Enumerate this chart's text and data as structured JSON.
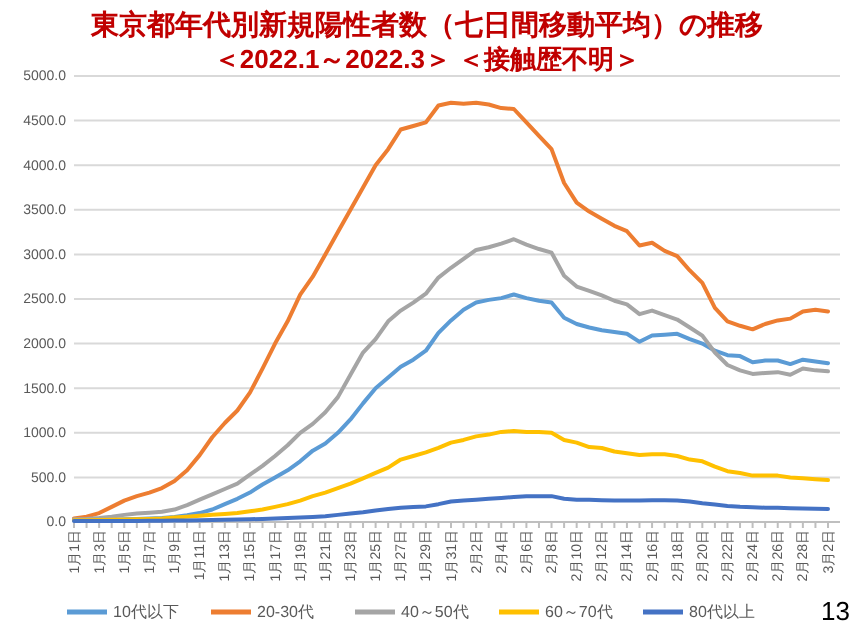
{
  "chart_data": {
    "type": "line",
    "title": "東京都年代別新規陽性者数（七日間移動平均）の推移",
    "subtitle": "＜2022.1～2022.3＞ ＜接触歴不明＞",
    "categories": [
      "1月1日",
      null,
      "1月3日",
      null,
      "1月5日",
      null,
      "1月7日",
      null,
      "1月9日",
      null,
      "1月11日",
      null,
      "1月13日",
      null,
      "1月15日",
      null,
      "1月17日",
      null,
      "1月19日",
      null,
      "1月21日",
      null,
      "1月23日",
      null,
      "1月25日",
      null,
      "1月27日",
      null,
      "1月29日",
      null,
      "1月31日",
      null,
      "2月2日",
      null,
      "2月4日",
      null,
      "2月6日",
      null,
      "2月8日",
      null,
      "2月10日",
      null,
      "2月12日",
      null,
      "2月14日",
      null,
      "2月16日",
      null,
      "2月18日",
      null,
      "2月20日",
      null,
      "2月22日",
      null,
      "2月24日",
      null,
      "2月26日",
      null,
      "2月28日",
      null,
      "3月2日"
    ],
    "series": [
      {
        "name": "10代以下",
        "color": "#5b9bd5",
        "values": [
          20,
          20,
          25,
          25,
          30,
          35,
          40,
          45,
          55,
          75,
          100,
          140,
          200,
          260,
          330,
          420,
          500,
          580,
          680,
          800,
          880,
          1000,
          1150,
          1330,
          1500,
          1620,
          1740,
          1820,
          1920,
          2120,
          2260,
          2380,
          2460,
          2490,
          2510,
          2550,
          2510,
          2480,
          2460,
          2290,
          2220,
          2180,
          2150,
          2130,
          2110,
          2020,
          2090,
          2100,
          2110,
          2050,
          2000,
          1920,
          1870,
          1860,
          1790,
          1810,
          1810,
          1770,
          1820,
          1800,
          1780
        ]
      },
      {
        "name": "20-30代",
        "color": "#ed7d31",
        "values": [
          40,
          60,
          100,
          170,
          240,
          290,
          330,
          380,
          460,
          580,
          750,
          950,
          1110,
          1250,
          1450,
          1720,
          2000,
          2250,
          2550,
          2750,
          3000,
          3250,
          3500,
          3750,
          4000,
          4180,
          4400,
          4440,
          4480,
          4670,
          4700,
          4690,
          4700,
          4680,
          4640,
          4630,
          4480,
          4330,
          4180,
          3800,
          3580,
          3480,
          3400,
          3320,
          3260,
          3100,
          3130,
          3040,
          2980,
          2820,
          2680,
          2400,
          2250,
          2200,
          2160,
          2220,
          2260,
          2280,
          2360,
          2380,
          2360
        ]
      },
      {
        "name": "40～50代",
        "color": "#a5a5a5",
        "values": [
          30,
          35,
          45,
          60,
          80,
          95,
          105,
          115,
          140,
          190,
          250,
          310,
          370,
          430,
          530,
          630,
          740,
          860,
          1000,
          1100,
          1230,
          1400,
          1650,
          1900,
          2050,
          2250,
          2370,
          2460,
          2560,
          2740,
          2850,
          2950,
          3050,
          3080,
          3120,
          3170,
          3110,
          3060,
          3020,
          2760,
          2640,
          2590,
          2540,
          2480,
          2440,
          2330,
          2370,
          2320,
          2270,
          2180,
          2090,
          1900,
          1760,
          1700,
          1660,
          1670,
          1680,
          1650,
          1720,
          1700,
          1690
        ]
      },
      {
        "name": "60～70代",
        "color": "#ffc000",
        "values": [
          20,
          20,
          22,
          25,
          28,
          30,
          35,
          40,
          50,
          60,
          70,
          80,
          90,
          100,
          120,
          140,
          170,
          200,
          240,
          290,
          330,
          380,
          430,
          490,
          550,
          610,
          700,
          740,
          780,
          830,
          890,
          920,
          960,
          980,
          1010,
          1020,
          1010,
          1010,
          1000,
          920,
          890,
          840,
          830,
          790,
          770,
          750,
          760,
          760,
          740,
          700,
          680,
          620,
          570,
          550,
          520,
          520,
          520,
          500,
          490,
          480,
          470
        ]
      },
      {
        "name": "80代以上",
        "color": "#4472c4",
        "values": [
          10,
          10,
          10,
          10,
          12,
          12,
          14,
          14,
          16,
          18,
          20,
          22,
          25,
          28,
          30,
          35,
          40,
          45,
          50,
          57,
          65,
          80,
          95,
          110,
          130,
          145,
          160,
          168,
          175,
          200,
          230,
          240,
          250,
          260,
          270,
          280,
          290,
          290,
          290,
          260,
          250,
          250,
          245,
          240,
          240,
          240,
          245,
          245,
          240,
          230,
          210,
          195,
          180,
          170,
          165,
          160,
          160,
          155,
          150,
          148,
          145
        ]
      }
    ],
    "ylim": [
      0,
      5000
    ],
    "yticks": [
      {
        "value": 0,
        "label": "0.0"
      },
      {
        "value": 500,
        "label": "500.0"
      },
      {
        "value": 1000,
        "label": "1000.0"
      },
      {
        "value": 1500,
        "label": "1500.0"
      },
      {
        "value": 2000,
        "label": "2000.0"
      },
      {
        "value": 2500,
        "label": "2500.0"
      },
      {
        "value": 3000,
        "label": "3000.0"
      },
      {
        "value": 3500,
        "label": "3500.0"
      },
      {
        "value": 4000,
        "label": "4000.0"
      },
      {
        "value": 4500,
        "label": "4500.0"
      },
      {
        "value": 5000,
        "label": "5000.0"
      }
    ],
    "grid": "y",
    "legend": "bottom",
    "marker": "none",
    "line_style": "solid",
    "annotations": [
      "13"
    ]
  }
}
